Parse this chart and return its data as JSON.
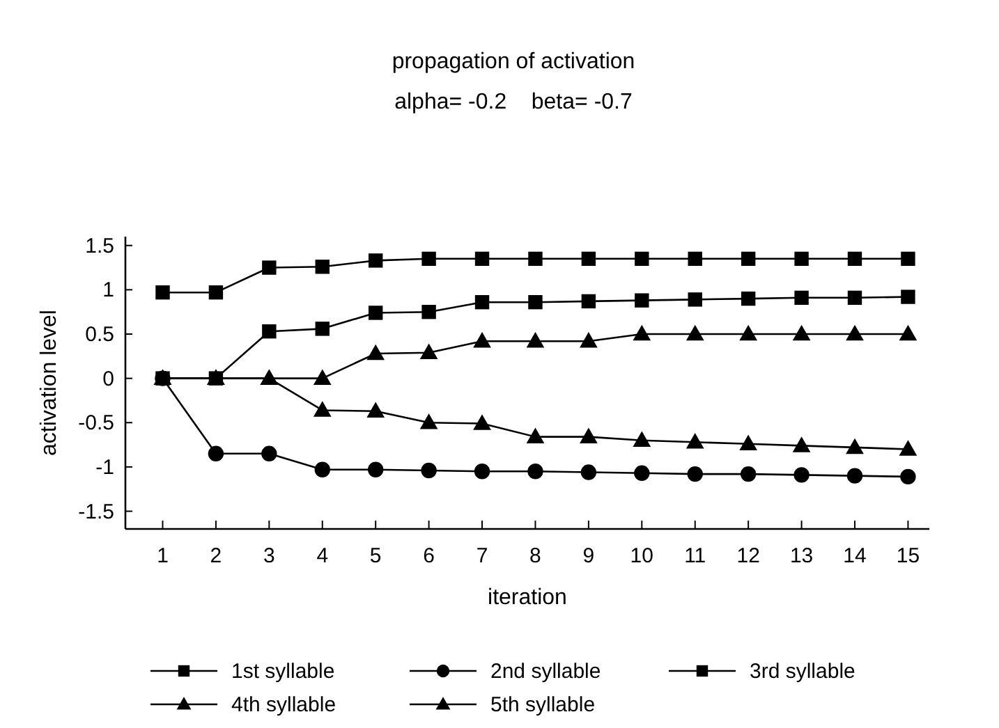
{
  "chart_data": {
    "type": "line",
    "title": "propagation of activation",
    "subtitle": "alpha= -0.2    beta= -0.7",
    "xlabel": "iteration",
    "ylabel": "activation level",
    "x": [
      1,
      2,
      3,
      4,
      5,
      6,
      7,
      8,
      9,
      10,
      11,
      12,
      13,
      14,
      15
    ],
    "xlim": [
      0.3,
      15.4
    ],
    "xticks": [
      1,
      2,
      3,
      4,
      5,
      6,
      7,
      8,
      9,
      10,
      11,
      12,
      13,
      14,
      15
    ],
    "ylim": [
      -1.7,
      1.6
    ],
    "yticks": [
      {
        "value": 1.5,
        "label": "1.5"
      },
      {
        "value": 1,
        "label": "1"
      },
      {
        "value": 0.5,
        "label": "0.5"
      },
      {
        "value": 0,
        "label": "0"
      },
      {
        "value": -0.5,
        "label": "-0.5"
      },
      {
        "value": -1,
        "label": "-1"
      },
      {
        "value": -1.5,
        "label": "-1.5"
      }
    ],
    "grid": false,
    "legend": "bottom",
    "line_style": "solid",
    "series": [
      {
        "name": "1st syllable",
        "color": "#000000",
        "marker": "square",
        "values": [
          0.97,
          0.97,
          1.25,
          1.26,
          1.33,
          1.35,
          1.35,
          1.35,
          1.35,
          1.35,
          1.35,
          1.35,
          1.35,
          1.35,
          1.35
        ]
      },
      {
        "name": "2nd syllable",
        "color": "#000000",
        "marker": "circle",
        "values": [
          0,
          -0.85,
          -0.85,
          -1.03,
          -1.03,
          -1.04,
          -1.05,
          -1.05,
          -1.06,
          -1.07,
          -1.08,
          -1.08,
          -1.09,
          -1.1,
          -1.11
        ]
      },
      {
        "name": "3rd syllable",
        "color": "#000000",
        "marker": "square",
        "values": [
          0,
          0,
          0.53,
          0.56,
          0.74,
          0.75,
          0.86,
          0.86,
          0.87,
          0.88,
          0.89,
          0.9,
          0.91,
          0.91,
          0.92
        ]
      },
      {
        "name": "4th syllable",
        "color": "#000000",
        "marker": "triangle",
        "values": [
          0,
          0,
          0,
          -0.36,
          -0.37,
          -0.5,
          -0.51,
          -0.66,
          -0.66,
          -0.7,
          -0.72,
          -0.74,
          -0.76,
          -0.78,
          -0.8
        ]
      },
      {
        "name": "5th syllable",
        "color": "#000000",
        "marker": "triangle",
        "values": [
          0,
          0,
          0,
          0,
          0.28,
          0.29,
          0.42,
          0.42,
          0.42,
          0.5,
          0.5,
          0.5,
          0.5,
          0.5,
          0.5
        ]
      }
    ]
  }
}
